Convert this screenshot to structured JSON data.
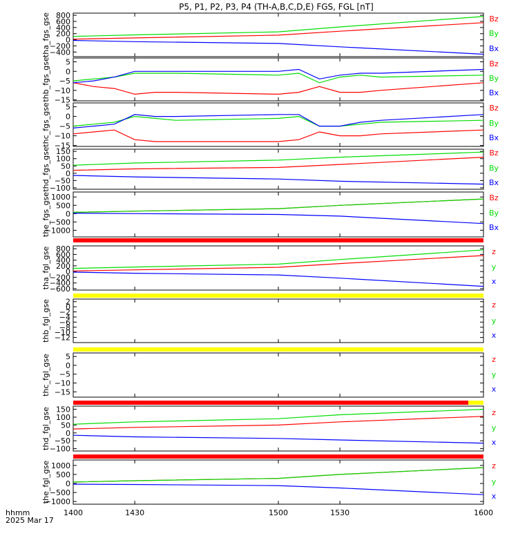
{
  "title": "P5, P1, P2, P3, P4 (TH-A,B,C,D,E) FGS, FGL [nT]",
  "xaxis": {
    "label_line1": "hhmm",
    "label_line2": "2025 Mar 17",
    "ticks": [
      "1400",
      "1430",
      "1500",
      "1530",
      "1600"
    ]
  },
  "colors": {
    "x": "#0000ff",
    "y": "#00dd00",
    "z": "#ff0000",
    "bar_red": "#ff0000",
    "bar_yellow": "#ffff00"
  },
  "chart_data": [
    {
      "type": "line",
      "ylabel": "tha_fgs_gse",
      "ylim": [
        -550,
        870
      ],
      "yticks": [
        800,
        600,
        400,
        200,
        0,
        -200,
        -400
      ],
      "legend": [
        "Bz",
        "By",
        "Bx"
      ],
      "x": [
        1400,
        1430,
        1500,
        1530,
        1600
      ],
      "series": [
        {
          "name": "Bz",
          "values": [
            20,
            60,
            150,
            280,
            560
          ]
        },
        {
          "name": "By",
          "values": [
            110,
            160,
            260,
            420,
            760
          ]
        },
        {
          "name": "Bx",
          "values": [
            -20,
            -60,
            -120,
            -230,
            -470
          ]
        }
      ]
    },
    {
      "type": "line",
      "ylabel": "thb_fgs_gse",
      "ylim": [
        -15.5,
        7
      ],
      "yticks": [
        5,
        0,
        -5,
        -10,
        -15
      ],
      "legend": [
        "Bz",
        "By",
        "Bx"
      ],
      "x": [
        1400,
        1410,
        1420,
        1430,
        1440,
        1450,
        1500,
        1510,
        1520,
        1530,
        1540,
        1550,
        1600
      ],
      "series": [
        {
          "name": "Bz",
          "values": [
            -6,
            -8,
            -9,
            -12,
            -11,
            -11,
            -12,
            -11,
            -8,
            -11,
            -11,
            -10,
            -6
          ]
        },
        {
          "name": "By",
          "values": [
            -5,
            -4,
            -3,
            -1,
            -1,
            -1,
            -2,
            -1,
            -6,
            -3,
            -2,
            -3,
            -2
          ]
        },
        {
          "name": "Bx",
          "values": [
            -6,
            -5,
            -3,
            0,
            0,
            0,
            0,
            1,
            -4,
            -2,
            -1,
            -1,
            1
          ]
        }
      ]
    },
    {
      "type": "line",
      "ylabel": "thc_fgs_gse",
      "ylim": [
        -15.5,
        7
      ],
      "yticks": [
        5,
        0,
        -5,
        -10,
        -15
      ],
      "legend": [
        "Bz",
        "By",
        "Bx"
      ],
      "x": [
        1400,
        1410,
        1420,
        1430,
        1440,
        1450,
        1500,
        1510,
        1520,
        1530,
        1540,
        1550,
        1600
      ],
      "series": [
        {
          "name": "Bz",
          "values": [
            -9,
            -8,
            -7,
            -12,
            -13,
            -13,
            -13,
            -12,
            -8,
            -10,
            -10,
            -9,
            -7
          ]
        },
        {
          "name": "By",
          "values": [
            -5,
            -4,
            -3,
            0,
            -1,
            -2,
            -1,
            0,
            -5,
            -5,
            -4,
            -3,
            -2
          ]
        },
        {
          "name": "Bx",
          "values": [
            -6,
            -5,
            -4,
            1,
            0,
            0,
            1,
            1,
            -5,
            -5,
            -3,
            -2,
            1
          ]
        }
      ]
    },
    {
      "type": "line",
      "ylabel": "thd_fgs_gse",
      "ylim": [
        -110,
        165
      ],
      "yticks": [
        150,
        100,
        50,
        0,
        -50,
        -100
      ],
      "legend": [
        "Bz",
        "By",
        "Bx"
      ],
      "x": [
        1400,
        1430,
        1500,
        1530,
        1600
      ],
      "series": [
        {
          "name": "Bz",
          "values": [
            20,
            30,
            40,
            60,
            110
          ]
        },
        {
          "name": "By",
          "values": [
            55,
            70,
            90,
            110,
            145
          ]
        },
        {
          "name": "Bx",
          "values": [
            -15,
            -25,
            -40,
            -55,
            -75
          ]
        }
      ]
    },
    {
      "type": "line",
      "ylabel": "the_fgs_gse",
      "ylim": [
        -1400,
        1300
      ],
      "yticks": [
        1000,
        500,
        0,
        -500,
        -1000
      ],
      "legend": [
        "Bz",
        "By",
        "Bx"
      ],
      "x": [
        1400,
        1430,
        1500,
        1530,
        1600
      ],
      "series": [
        {
          "name": "Bz",
          "values": [
            80,
            150,
            300,
            500,
            880
          ]
        },
        {
          "name": "By",
          "values": [
            80,
            150,
            300,
            500,
            880
          ]
        },
        {
          "name": "Bx",
          "values": [
            30,
            0,
            -50,
            -150,
            -600
          ]
        }
      ],
      "bar_below": [
        "red"
      ]
    },
    {
      "type": "line",
      "ylabel": "tha_fgl_gse",
      "ylim": [
        -650,
        900
      ],
      "yticks": [
        800,
        600,
        400,
        200,
        0,
        -200,
        -400,
        -600
      ],
      "legend": [
        "z",
        "y",
        "x"
      ],
      "x": [
        1400,
        1430,
        1500,
        1530,
        1600
      ],
      "series": [
        {
          "name": "z",
          "values": [
            20,
            60,
            150,
            280,
            560
          ]
        },
        {
          "name": "y",
          "values": [
            110,
            160,
            260,
            420,
            760
          ]
        },
        {
          "name": "x",
          "values": [
            -20,
            -60,
            -120,
            -230,
            -520
          ]
        }
      ],
      "bar_below": [
        "yellow"
      ]
    },
    {
      "type": "line",
      "ylabel": "thb_fgl_gse",
      "ylim": [
        -14,
        3
      ],
      "yticks": [
        2,
        0,
        -2,
        -4,
        -6,
        -8,
        -10,
        -12
      ],
      "legend": [
        "z",
        "y",
        "x"
      ],
      "x": [],
      "series": [],
      "bar_below": [
        "yellow"
      ]
    },
    {
      "type": "line",
      "ylabel": "thc_fgl_gse",
      "ylim": [
        -18,
        7
      ],
      "yticks": [
        5,
        0,
        -5,
        -10,
        -15
      ],
      "legend": [
        "z",
        "y",
        "x"
      ],
      "x": [],
      "series": [],
      "bar_below": [
        "red",
        "yellow"
      ]
    },
    {
      "type": "line",
      "ylabel": "thd_fgl_gse",
      "ylim": [
        -115,
        170
      ],
      "yticks": [
        150,
        100,
        50,
        0,
        -50,
        -100
      ],
      "legend": [
        "z",
        "y",
        "x"
      ],
      "x": [
        1400,
        1430,
        1500,
        1530,
        1600
      ],
      "series": [
        {
          "name": "z",
          "values": [
            25,
            35,
            50,
            70,
            105
          ]
        },
        {
          "name": "y",
          "values": [
            55,
            70,
            90,
            115,
            150
          ]
        },
        {
          "name": "x",
          "values": [
            -15,
            -25,
            -35,
            -45,
            -65
          ]
        }
      ],
      "bar_below": [
        "red"
      ]
    },
    {
      "type": "line",
      "ylabel": "the_fgl_gse",
      "ylim": [
        -1150,
        1300
      ],
      "yticks": [
        1000,
        500,
        0,
        -500,
        -1000
      ],
      "legend": [
        "z",
        "y",
        "x"
      ],
      "x": [
        1400,
        1430,
        1500,
        1530,
        1600
      ],
      "series": [
        {
          "name": "z",
          "values": [
            80,
            150,
            280,
            500,
            880
          ]
        },
        {
          "name": "y",
          "values": [
            80,
            150,
            280,
            500,
            880
          ]
        },
        {
          "name": "x",
          "values": [
            -40,
            -60,
            -120,
            -250,
            -620
          ]
        }
      ]
    }
  ]
}
